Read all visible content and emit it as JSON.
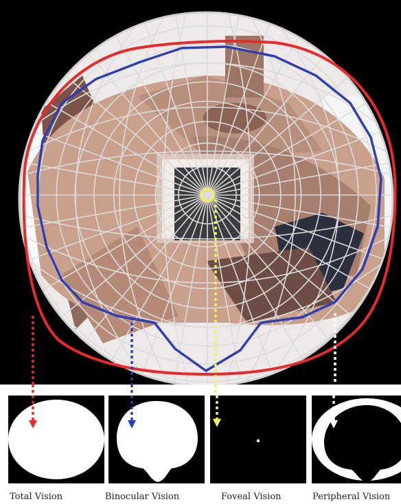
{
  "figure": {
    "captions": [
      "Total Vision",
      "Binocular Vision",
      "Foveal Vision",
      "Peripheral Vision"
    ]
  },
  "colors": {
    "background": "#000000",
    "grid": "#dcdcdc",
    "total_vision": "#e52b2b",
    "binocular_vision": "#2f3fb0",
    "foveal_vision": "#f2f060",
    "peripheral_vision": "#ffffff",
    "wall": "#c9a08c",
    "wall_shadow": "#9c7564"
  },
  "icons": [
    "red-dashed-arrow-icon",
    "blue-dashed-arrow-icon",
    "yellow-dashed-arrow-icon",
    "white-dashed-arrow-icon"
  ]
}
